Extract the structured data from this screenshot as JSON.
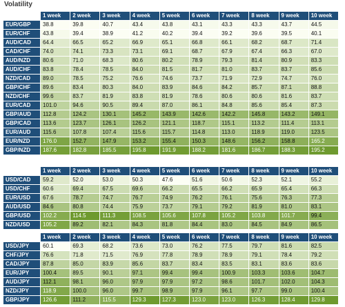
{
  "title": "Volatility",
  "columns": [
    "1 week",
    "2 week",
    "3 week",
    "4 week",
    "5 week",
    "6 week",
    "7 week",
    "8 week",
    "9 week",
    "10 week"
  ],
  "colors": {
    "header_bg": "#1f4e79",
    "scale_low": "#fcfef4",
    "scale_high": "#6e9a2e"
  },
  "tables": [
    {
      "rows": [
        {
          "pair": "EUR/GBP",
          "values": [
            "38.8",
            "39.8",
            "40.7",
            "43.4",
            "43.8",
            "43.1",
            "43.3",
            "43.3",
            "43.7",
            "44.5"
          ]
        },
        {
          "pair": "EUR/CHF",
          "values": [
            "43.8",
            "39.4",
            "38.9",
            "41.2",
            "40.2",
            "39.4",
            "39.2",
            "39.6",
            "39.5",
            "40.1"
          ]
        },
        {
          "pair": "AUD/CAD",
          "values": [
            "64.4",
            "66.5",
            "65.2",
            "66.9",
            "65.1",
            "66.8",
            "66.1",
            "68.2",
            "68.7",
            "71.4"
          ]
        },
        {
          "pair": "CAD/CHF",
          "values": [
            "74.0",
            "74.1",
            "73.3",
            "73.1",
            "69.1",
            "68.7",
            "67.9",
            "67.4",
            "66.3",
            "67.0"
          ]
        },
        {
          "pair": "AUD/NZD",
          "values": [
            "80.6",
            "71.0",
            "68.3",
            "80.6",
            "80.2",
            "78.9",
            "79.3",
            "81.4",
            "80.9",
            "83.3"
          ]
        },
        {
          "pair": "AUD/CHF",
          "values": [
            "83.8",
            "78.4",
            "78.5",
            "84.0",
            "81.5",
            "81.7",
            "81.0",
            "83.7",
            "83.7",
            "85.6"
          ]
        },
        {
          "pair": "NZD/CAD",
          "values": [
            "89.0",
            "78.5",
            "75.2",
            "76.6",
            "74.6",
            "73.7",
            "71.9",
            "72.9",
            "74.7",
            "76.0"
          ]
        },
        {
          "pair": "GBP/CHF",
          "values": [
            "89.6",
            "83.4",
            "80.3",
            "84.0",
            "83.9",
            "84.6",
            "84.2",
            "85.7",
            "87.1",
            "88.8"
          ]
        },
        {
          "pair": "NZD/CHF",
          "values": [
            "99.6",
            "83.7",
            "81.9",
            "83.8",
            "81.9",
            "78.6",
            "80.6",
            "80.6",
            "81.6",
            "83.7"
          ]
        },
        {
          "pair": "EUR/CAD",
          "values": [
            "101.0",
            "94.6",
            "90.5",
            "89.4",
            "87.0",
            "86.1",
            "84.8",
            "85.6",
            "85.4",
            "87.3"
          ]
        },
        {
          "pair": "GBP/AUD",
          "values": [
            "112.8",
            "124.2",
            "130.1",
            "145.2",
            "143.9",
            "142.6",
            "142.2",
            "145.8",
            "143.2",
            "149.1"
          ]
        },
        {
          "pair": "GBP/CAD",
          "values": [
            "113.6",
            "123.7",
            "126.1",
            "126.2",
            "121.1",
            "118.7",
            "115.1",
            "113.2",
            "111.4",
            "113.1"
          ]
        },
        {
          "pair": "EUR/AUD",
          "values": [
            "115.6",
            "107.8",
            "107.4",
            "115.6",
            "115.7",
            "114.8",
            "113.0",
            "118.9",
            "119.0",
            "123.5"
          ]
        },
        {
          "pair": "EUR/NZD",
          "values": [
            "176.0",
            "152.7",
            "147.9",
            "153.2",
            "155.4",
            "150.3",
            "148.6",
            "156.2",
            "158.8",
            "165.2"
          ]
        },
        {
          "pair": "GBP/NZD",
          "values": [
            "187.6",
            "182.8",
            "185.5",
            "195.8",
            "191.9",
            "188.2",
            "181.6",
            "186.7",
            "188.3",
            "195.2"
          ]
        }
      ]
    },
    {
      "rows": [
        {
          "pair": "USD/CAD",
          "values": [
            "59.2",
            "52.0",
            "53.0",
            "50.3",
            "47.6",
            "51.6",
            "50.6",
            "52.3",
            "52.1",
            "55.2"
          ]
        },
        {
          "pair": "USD/CHF",
          "values": [
            "60.6",
            "69.4",
            "67.5",
            "69.6",
            "66.2",
            "65.5",
            "66.2",
            "65.9",
            "65.4",
            "66.3"
          ]
        },
        {
          "pair": "EUR/USD",
          "values": [
            "67.6",
            "78.7",
            "74.7",
            "76.7",
            "74.9",
            "76.2",
            "76.1",
            "75.6",
            "76.3",
            "77.3"
          ]
        },
        {
          "pair": "AUD/USD",
          "values": [
            "84.6",
            "80.8",
            "74.4",
            "75.9",
            "73.7",
            "79.1",
            "79.2",
            "81.9",
            "81.0",
            "83.1"
          ]
        },
        {
          "pair": "GBP/USD",
          "values": [
            "102.2",
            "114.5",
            "111.3",
            "108.5",
            "105.6",
            "107.8",
            "105.2",
            "103.8",
            "101.7",
            "99.4"
          ]
        },
        {
          "pair": "NZD/USD",
          "values": [
            "105.2",
            "89.2",
            "82.1",
            "84.3",
            "81.8",
            "84.4",
            "83.0",
            "84.5",
            "84.9",
            "86.5"
          ]
        }
      ]
    },
    {
      "rows": [
        {
          "pair": "USD/JPY",
          "values": [
            "60.1",
            "69.3",
            "68.2",
            "73.6",
            "73.0",
            "76.2",
            "77.5",
            "79.7",
            "81.6",
            "82.5"
          ]
        },
        {
          "pair": "CHF/JPY",
          "values": [
            "76.6",
            "71.8",
            "71.5",
            "76.9",
            "77.8",
            "78.9",
            "78.9",
            "79.1",
            "78.4",
            "79.2"
          ]
        },
        {
          "pair": "CAD/JPY",
          "values": [
            "87.8",
            "85.0",
            "83.9",
            "85.6",
            "83.7",
            "83.4",
            "83.5",
            "83.1",
            "83.6",
            "83.6"
          ]
        },
        {
          "pair": "EUR/JPY",
          "values": [
            "100.4",
            "89.5",
            "90.1",
            "97.1",
            "99.4",
            "99.4",
            "100.9",
            "103.3",
            "103.6",
            "104.7"
          ]
        },
        {
          "pair": "AUD/JPY",
          "values": [
            "112.1",
            "98.1",
            "96.0",
            "97.9",
            "97.9",
            "97.2",
            "98.6",
            "101.7",
            "102.0",
            "104.3"
          ]
        },
        {
          "pair": "NZD/JPY",
          "values": [
            "118.9",
            "100.0",
            "96.0",
            "99.7",
            "98.9",
            "97.9",
            "96.1",
            "97.7",
            "99.0",
            "100.4"
          ]
        },
        {
          "pair": "GBP/JPY",
          "values": [
            "126.6",
            "111.2",
            "115.5",
            "129.3",
            "127.3",
            "123.0",
            "123.0",
            "126.3",
            "128.4",
            "129.8"
          ]
        }
      ]
    }
  ]
}
